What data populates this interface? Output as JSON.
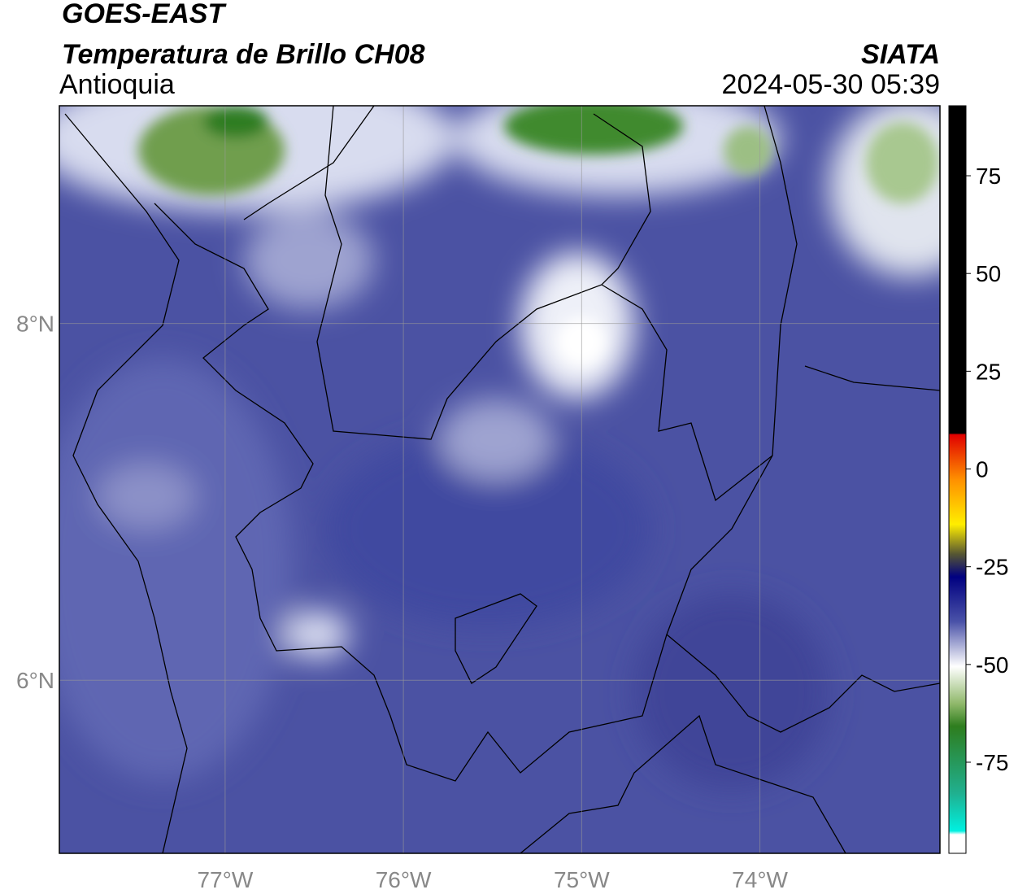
{
  "header": {
    "title": "GOES-EAST",
    "subtitle": "Temperatura de Brillo CH08",
    "source": "SIATA",
    "region": "Antioquia",
    "datetime": "2024-05-30 05:39"
  },
  "map": {
    "xlim": [
      -77.93,
      -72.99
    ],
    "ylim": [
      5.03,
      9.22
    ],
    "xticks": [
      {
        "value": -77,
        "label": "77°W"
      },
      {
        "value": -76,
        "label": "76°W"
      },
      {
        "value": -75,
        "label": "75°W"
      },
      {
        "value": -74,
        "label": "74°W"
      }
    ],
    "yticks": [
      {
        "value": 6,
        "label": "6°N"
      },
      {
        "value": 8,
        "label": "8°N"
      }
    ],
    "grid": true
  },
  "colorbar": {
    "lim": [
      -98.3,
      92.9
    ],
    "ticks": [
      -75,
      -50,
      -25,
      0,
      25,
      50,
      75
    ]
  }
}
